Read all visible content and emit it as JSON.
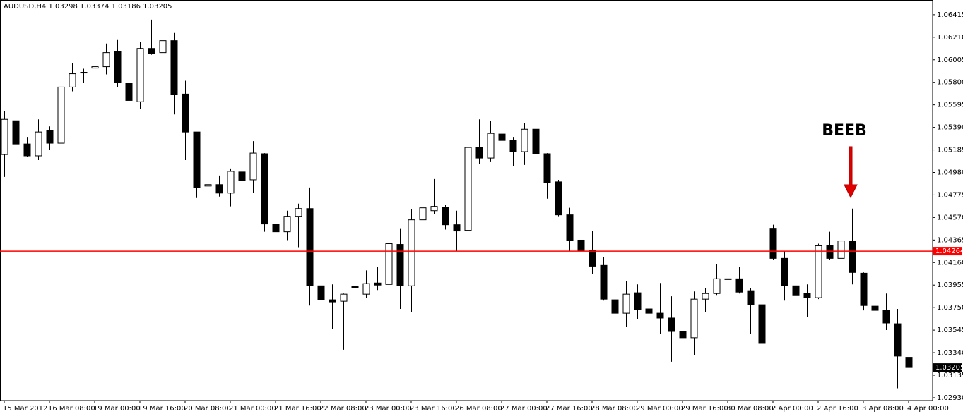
{
  "chart_data": {
    "type": "candlestick",
    "title": "AUDUSD,H4",
    "annotation": "BEEB",
    "up_color": "#ffffff",
    "down_color": "#000000",
    "price_line": {
      "value": 1.04264,
      "color": "#ff0000"
    },
    "ylim": [
      1.02904,
      1.06549
    ],
    "yticks": [
      1.06415,
      {
        "value": 1.0621,
        "label": "1.06210"
      },
      1.06005,
      {
        "value": 1.058,
        "label": "1.05800"
      },
      1.05595,
      {
        "value": 1.0539,
        "label": "1.05390"
      },
      1.05185,
      {
        "value": 1.0498,
        "label": "1.04980"
      },
      1.04775,
      {
        "value": 1.0457,
        "label": "1.04570"
      },
      1.04365,
      {
        "value": 1.0416,
        "label": "1.04160"
      },
      1.03955,
      {
        "value": 1.0375,
        "label": "1.03750"
      },
      1.03545,
      {
        "value": 1.0334,
        "label": "1.03340"
      },
      1.03135,
      {
        "value": 1.0293,
        "label": "1.02930"
      }
    ],
    "categories": [
      "15 Mar 2012",
      null,
      null,
      null,
      "16 Mar 08:00",
      null,
      null,
      null,
      "19 Mar 00:00",
      null,
      null,
      null,
      "19 Mar 16:00",
      null,
      null,
      null,
      "20 Mar 08:00",
      null,
      null,
      null,
      "21 Mar 00:00",
      null,
      null,
      null,
      "21 Mar 16:00",
      null,
      null,
      null,
      "22 Mar 08:00",
      null,
      null,
      null,
      "23 Mar 00:00",
      null,
      null,
      null,
      "23 Mar 16:00",
      null,
      null,
      null,
      "26 Mar 08:00",
      null,
      null,
      null,
      "27 Mar 00:00",
      null,
      null,
      null,
      "27 Mar 16:00",
      null,
      null,
      null,
      "28 Mar 08:00",
      null,
      null,
      null,
      "29 Mar 00:00",
      null,
      null,
      null,
      "29 Mar 16:00",
      null,
      null,
      null,
      "30 Mar 08:00",
      null,
      null,
      null,
      "2 Apr 00:00",
      null,
      null,
      null,
      "2 Apr 16:00",
      null,
      null,
      null,
      "3 Apr 08:00",
      null,
      null,
      null,
      "4 Apr 00:00"
    ],
    "open": [
      1.05143,
      1.0545,
      1.05239,
      1.05131,
      1.05361,
      1.05246,
      1.05757,
      1.05885,
      1.05929,
      1.05942,
      1.06083,
      1.05789,
      1.05623,
      1.06108,
      1.0607,
      1.06179,
      1.05693,
      1.05348,
      1.04856,
      1.04869,
      1.04792,
      1.04984,
      1.04913,
      1.0515,
      1.04511,
      1.0444,
      1.04581,
      1.04651,
      1.03948,
      1.03821,
      1.03808,
      1.03942,
      1.03872,
      1.03974,
      1.03961,
      1.04325,
      1.03948,
      1.04549,
      1.04632,
      1.04664,
      1.04504,
      1.04453,
      1.05207,
      1.05111,
      1.05329,
      1.05271,
      1.05169,
      1.05373,
      1.0515,
      1.04894,
      1.04594,
      1.04364,
      1.04268,
      1.04134,
      1.03821,
      1.03699,
      1.03885,
      1.03738,
      1.03699,
      1.03655,
      1.03533,
      1.03476,
      1.03827,
      1.03878,
      1.04012,
      1.04012,
      1.03904,
      1.03776,
      1.04472,
      1.04198,
      1.03948,
      1.03878,
      1.0384,
      1.04313,
      1.04198,
      1.04357,
      1.04063,
      1.03763,
      1.03725,
      1.03603,
      1.03298
    ],
    "high": [
      1.0554,
      1.05527,
      1.05303,
      1.05463,
      1.05399,
      1.05846,
      1.05974,
      1.05923,
      1.06127,
      1.06153,
      1.06185,
      1.05923,
      1.06166,
      1.0637,
      1.06198,
      1.06249,
      1.05814,
      1.05348,
      1.04971,
      1.04952,
      1.05016,
      1.05252,
      1.05265,
      1.05156,
      1.04632,
      1.04632,
      1.04696,
      1.04843,
      1.04172,
      1.03961,
      1.03878,
      1.04019,
      1.04089,
      1.04121,
      1.04453,
      1.04472,
      1.04645,
      1.04824,
      1.0492,
      1.04683,
      1.04632,
      1.05412,
      1.05463,
      1.0545,
      1.05412,
      1.05303,
      1.05431,
      1.05578,
      1.05156,
      1.04913,
      1.04658,
      1.04466,
      1.04447,
      1.04211,
      1.03929,
      1.03993,
      1.03961,
      1.03789,
      1.03974,
      1.03853,
      1.03642,
      1.03897,
      1.03929,
      1.04147,
      1.0414,
      1.04121,
      1.03929,
      1.03782,
      1.04504,
      1.04262,
      1.04038,
      1.03961,
      1.04332,
      1.0444,
      1.04377,
      1.04651,
      1.0407,
      1.03865,
      1.03878,
      1.03738,
      1.03374
    ],
    "low": [
      1.04939,
      1.05226,
      1.05118,
      1.05092,
      1.05188,
      1.05175,
      1.05718,
      1.05795,
      1.05795,
      1.05872,
      1.05757,
      1.05623,
      1.05559,
      1.06051,
      1.05942,
      1.05508,
      1.05092,
      1.04747,
      1.04581,
      1.0476,
      1.04671,
      1.0476,
      1.04792,
      1.0444,
      1.04204,
      1.04364,
      1.043,
      1.03769,
      1.03706,
      1.03552,
      1.03367,
      1.03661,
      1.0384,
      1.0391,
      1.0375,
      1.03738,
      1.03712,
      1.0453,
      1.046,
      1.0446,
      1.04268,
      1.0444,
      1.0506,
      1.0508,
      1.05188,
      1.05041,
      1.05048,
      1.04965,
      1.04741,
      1.04581,
      1.04268,
      1.04249,
      1.04057,
      1.03814,
      1.03565,
      1.03571,
      1.03642,
      1.03412,
      1.03514,
      1.03258,
      1.03047,
      1.03316,
      1.03706,
      1.03865,
      1.03891,
      1.03878,
      1.03514,
      1.03316,
      1.04185,
      1.03814,
      1.03802,
      1.03661,
      1.03827,
      1.04185,
      1.04076,
      1.03961,
      1.03725,
      1.03546,
      1.03546,
      1.03016,
      1.03186
    ],
    "close": [
      1.05463,
      1.05239,
      1.05131,
      1.05348,
      1.05246,
      1.05757,
      1.05878,
      1.05891,
      1.05942,
      1.0607,
      1.05795,
      1.05635,
      1.06108,
      1.06064,
      1.06179,
      1.05687,
      1.05348,
      1.04843,
      1.04869,
      1.04792,
      1.0499,
      1.04907,
      1.05156,
      1.04511,
      1.0444,
      1.04581,
      1.04651,
      1.03948,
      1.03821,
      1.03802,
      1.03872,
      1.03929,
      1.03968,
      1.03955,
      1.04332,
      1.03948,
      1.04549,
      1.04658,
      1.04671,
      1.04504,
      1.04447,
      1.05207,
      1.05111,
      1.05335,
      1.05271,
      1.05169,
      1.05373,
      1.0515,
      1.04888,
      1.04594,
      1.04364,
      1.04268,
      1.04127,
      1.03827,
      1.03699,
      1.03872,
      1.03731,
      1.03699,
      1.03655,
      1.03533,
      1.03476,
      1.03827,
      1.03878,
      1.04012,
      1.04006,
      1.03891,
      1.03776,
      1.03424,
      1.04198,
      1.03948,
      1.03865,
      1.0384,
      1.04313,
      1.04198,
      1.04357,
      1.0407,
      1.03769,
      1.03725,
      1.0361,
      1.03309,
      1.03205
    ]
  }
}
